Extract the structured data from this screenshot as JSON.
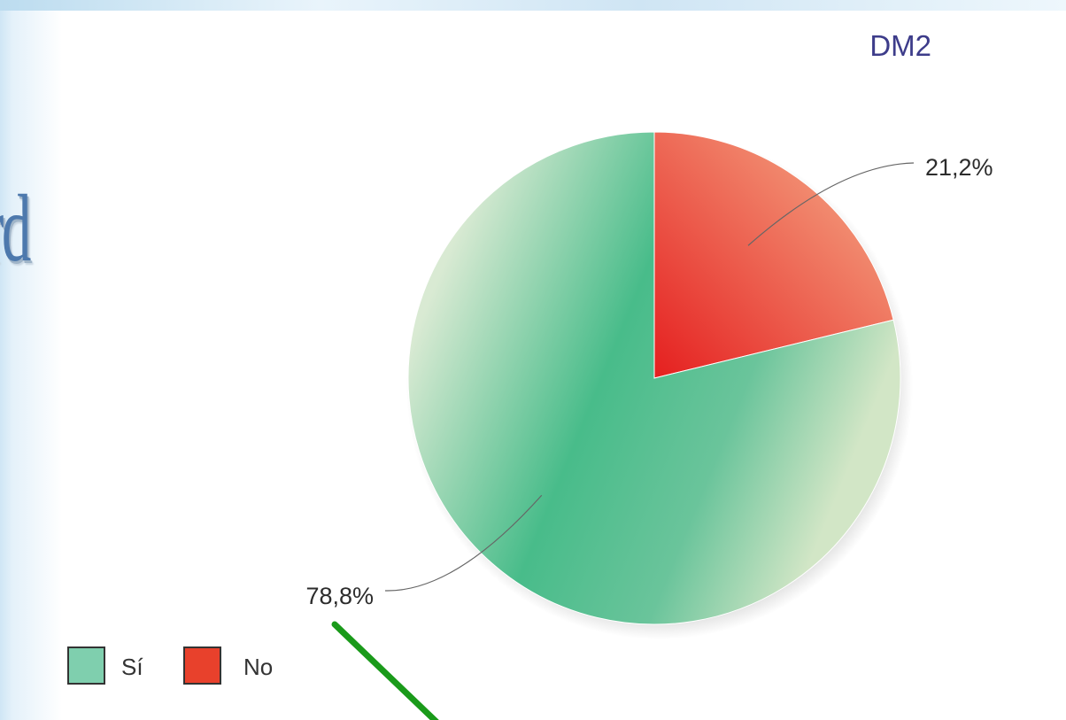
{
  "slide": {
    "title_fragment": "rd"
  },
  "chart_data": {
    "type": "pie",
    "title": "DM2",
    "start_angle_deg": 0,
    "direction": "clockwise",
    "slices": [
      {
        "label": "No",
        "value": 21.2,
        "value_label": "21,2%",
        "color": "#e8412c"
      },
      {
        "label": "Sí",
        "value": 78.8,
        "value_label": "78,8%",
        "color": "#5fbf94"
      }
    ],
    "legend": {
      "position": "bottom-left",
      "items": [
        {
          "label": "Sí",
          "color": "#7fcfae"
        },
        {
          "label": "No",
          "color": "#e8412c"
        }
      ]
    }
  },
  "annotation": {
    "arrow_color": "#1a9a1a"
  }
}
